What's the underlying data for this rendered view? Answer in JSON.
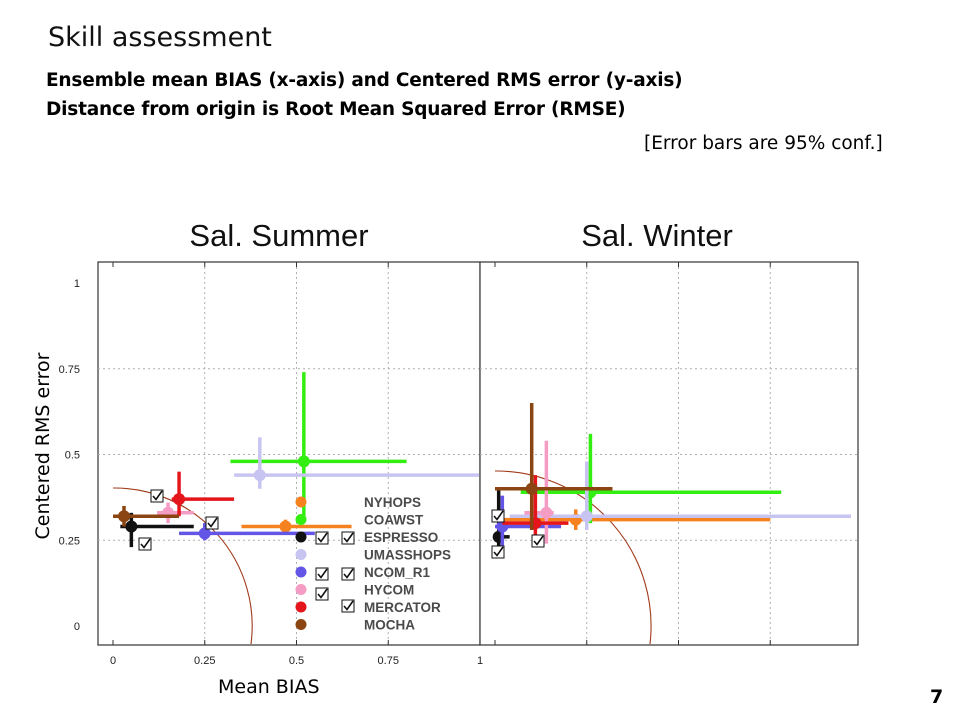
{
  "page": {
    "title": "Skill assessment",
    "subtitle_1": "Ensemble mean BIAS (x-axis) and Centered RMS error (y-axis)",
    "subtitle_2": "Distance from origin is Root Mean Squared Error (RMSE)",
    "error_note": "[Error bars are 95% conf.]",
    "page_number": "7"
  },
  "chart_data": {
    "type": "scatter",
    "xlabel": "Mean BIAS",
    "ylabel": "Centered RMS error",
    "xlim": [
      0,
      1
    ],
    "ylim": [
      0,
      1
    ],
    "x_ticks": [
      "0",
      "0.25",
      "0.5",
      "0.75",
      "1"
    ],
    "y_ticks": [
      "0",
      "0.25",
      "0.5",
      "0.75",
      "1"
    ],
    "grid": true,
    "legend_position": "lower-center of left panel",
    "legend": [
      {
        "name": "NYHOPS",
        "color": "#f5821f"
      },
      {
        "name": "COAWST",
        "color": "#33ee11"
      },
      {
        "name": "ESPRESSO",
        "color": "#111111"
      },
      {
        "name": "UMASSHOPS",
        "color": "#c8c4f2"
      },
      {
        "name": "NCOM_R1",
        "color": "#6355e6"
      },
      {
        "name": "HYCOM",
        "color": "#f59cc4"
      },
      {
        "name": "MERCATOR",
        "color": "#e4151b"
      },
      {
        "name": "MOCHA",
        "color": "#8b4513"
      }
    ],
    "panels": [
      {
        "title": "Sal. Summer",
        "series": [
          {
            "name": "NYHOPS",
            "color": "#f5821f",
            "x": 0.47,
            "y": 0.29,
            "x_err": [
              0.35,
              0.65
            ],
            "y_err": [
              0.28,
              0.31
            ]
          },
          {
            "name": "COAWST",
            "color": "#33ee11",
            "x": 0.52,
            "y": 0.48,
            "x_err": [
              0.32,
              0.8
            ],
            "y_err": [
              0.32,
              0.74
            ]
          },
          {
            "name": "ESPRESSO",
            "color": "#111111",
            "x": 0.05,
            "y": 0.29,
            "x_err": [
              0.02,
              0.22
            ],
            "y_err": [
              0.23,
              0.33
            ]
          },
          {
            "name": "UMASSHOPS",
            "color": "#c8c4f2",
            "x": 0.4,
            "y": 0.44,
            "x_err": [
              0.33,
              1.0
            ],
            "y_err": [
              0.4,
              0.55
            ]
          },
          {
            "name": "NCOM_R1",
            "color": "#6355e6",
            "x": 0.25,
            "y": 0.27,
            "x_err": [
              0.18,
              0.55
            ],
            "y_err": [
              0.25,
              0.3
            ]
          },
          {
            "name": "HYCOM",
            "color": "#f59cc4",
            "x": 0.15,
            "y": 0.33,
            "x_err": [
              0.12,
              0.22
            ],
            "y_err": [
              0.3,
              0.36
            ]
          },
          {
            "name": "MERCATOR",
            "color": "#e4151b",
            "x": 0.18,
            "y": 0.37,
            "x_err": [
              0.16,
              0.33
            ],
            "y_err": [
              0.32,
              0.45
            ]
          },
          {
            "name": "MOCHA",
            "color": "#8b4513",
            "x": 0.03,
            "y": 0.32,
            "x_err": [
              0.0,
              0.18
            ],
            "y_err": [
              0.29,
              0.35
            ]
          }
        ],
        "checkmarks": 9
      },
      {
        "title": "Sal. Winter",
        "series": [
          {
            "name": "NYHOPS",
            "color": "#f5821f",
            "x": 0.22,
            "y": 0.31,
            "x_err": [
              0.0,
              0.75
            ],
            "y_err": [
              0.28,
              0.34
            ]
          },
          {
            "name": "COAWST",
            "color": "#33ee11",
            "x": 0.26,
            "y": 0.39,
            "x_err": [
              0.07,
              0.78
            ],
            "y_err": [
              0.3,
              0.56
            ]
          },
          {
            "name": "ESPRESSO",
            "color": "#111111",
            "x": 0.01,
            "y": 0.26,
            "x_err": [
              0.0,
              0.04
            ],
            "y_err": [
              0.22,
              0.4
            ]
          },
          {
            "name": "UMASSHOPS",
            "color": "#c8c4f2",
            "x": 0.25,
            "y": 0.32,
            "x_err": [
              0.04,
              0.97
            ],
            "y_err": [
              0.28,
              0.48
            ]
          },
          {
            "name": "NCOM_R1",
            "color": "#6355e6",
            "x": 0.02,
            "y": 0.29,
            "x_err": [
              0.0,
              0.18
            ],
            "y_err": [
              0.22,
              0.38
            ]
          },
          {
            "name": "HYCOM",
            "color": "#f59cc4",
            "x": 0.14,
            "y": 0.33,
            "x_err": [
              0.08,
              0.16
            ],
            "y_err": [
              0.24,
              0.54
            ]
          },
          {
            "name": "MERCATOR",
            "color": "#e4151b",
            "x": 0.11,
            "y": 0.3,
            "x_err": [
              0.02,
              0.2
            ],
            "y_err": [
              0.26,
              0.44
            ]
          },
          {
            "name": "MOCHA",
            "color": "#8b4513",
            "x": 0.1,
            "y": 0.4,
            "x_err": [
              0.0,
              0.32
            ],
            "y_err": [
              0.28,
              0.65
            ]
          }
        ],
        "checkmarks": 4
      }
    ]
  }
}
